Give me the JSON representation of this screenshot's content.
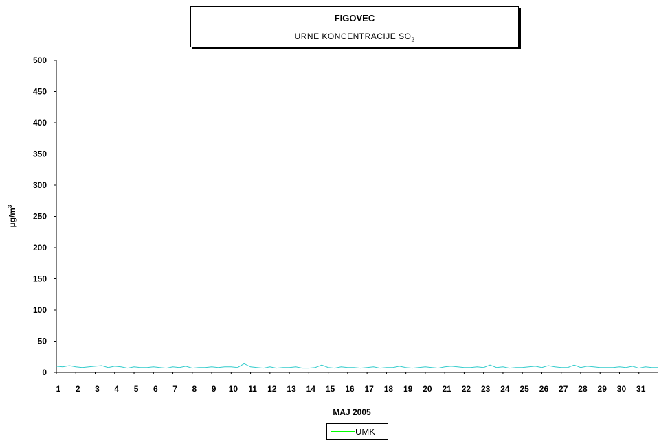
{
  "chart_data": {
    "type": "line",
    "title": "FIGOVEC",
    "subtitle_prefix": "URNE  KONCENTRACIJE  SO",
    "subtitle_subscript": "2",
    "xlabel": "MAJ  2005",
    "ylabel_prefix": "µg/m",
    "ylabel_superscript": "3",
    "ylim": [
      0,
      500
    ],
    "yticks": [
      0,
      50,
      100,
      150,
      200,
      250,
      300,
      350,
      400,
      450,
      500
    ],
    "xticks": [
      "1",
      "2",
      "3",
      "4",
      "5",
      "6",
      "7",
      "8",
      "9",
      "10",
      "11",
      "12",
      "13",
      "14",
      "15",
      "16",
      "17",
      "18",
      "19",
      "20",
      "21",
      "22",
      "23",
      "24",
      "25",
      "26",
      "27",
      "28",
      "29",
      "30",
      "31"
    ],
    "grid": false,
    "legend_position": "bottom-center",
    "series": [
      {
        "name": "SO2",
        "color": "#33cccc",
        "values": [
          10,
          9,
          11,
          9,
          8,
          9,
          10,
          11,
          8,
          10,
          9,
          7,
          9,
          8,
          8,
          9,
          8,
          7,
          9,
          8,
          10,
          7,
          8,
          8,
          9,
          8,
          9,
          9,
          8,
          14,
          9,
          8,
          7,
          9,
          7,
          8,
          8,
          9,
          7,
          7,
          8,
          12,
          8,
          7,
          9,
          8,
          8,
          7,
          8,
          9,
          7,
          8,
          8,
          10,
          8,
          7,
          8,
          9,
          8,
          7,
          9,
          10,
          9,
          8,
          8,
          9,
          8,
          12,
          8,
          9,
          7,
          8,
          8,
          9,
          10,
          8,
          11,
          9,
          8,
          8,
          12,
          8,
          10,
          9,
          8,
          8,
          8,
          9,
          8,
          10,
          7,
          9,
          8,
          8
        ]
      },
      {
        "name": "UMK",
        "color": "#00ff00",
        "values": [
          350,
          350
        ]
      }
    ]
  }
}
